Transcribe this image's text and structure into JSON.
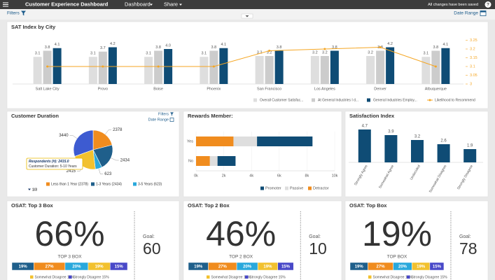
{
  "header": {
    "title": "Customer Experience Dashboard",
    "menus": [
      "Dashboard",
      "Share"
    ],
    "status": "All changes have been saved",
    "help": "?"
  },
  "toolbar": {
    "filters": "Filters",
    "date_range": "Date Range"
  },
  "chart_data": [
    {
      "type": "bar",
      "title": "SAT Index by City",
      "categories": [
        "Salt Lake City",
        "Provo",
        "Boise",
        "Phoenix",
        "San Francisco",
        "Los Angeles",
        "Denver",
        "Albuquerque"
      ],
      "series": [
        {
          "name": "Overall Customer Satisfac...",
          "color": "#dedede",
          "values": [
            3.1,
            3.1,
            3.1,
            3.1,
            3.2,
            3.2,
            3.2,
            3.1
          ]
        },
        {
          "name": "At General Industries I d...",
          "color": "#cccccc",
          "values": [
            3.8,
            3.7,
            3.8,
            3.8,
            3.2,
            3.2,
            3.8,
            3.8
          ]
        },
        {
          "name": "General Industries Employ...",
          "color": "#0f4c75",
          "values": [
            4.1,
            4.2,
            4,
            4.1,
            3.8,
            3.8,
            4.2,
            4.1
          ],
          "value_labels": [
            "4.1",
            "4.2",
            "4.0",
            "4.1",
            "3.8",
            "3.8",
            "4.2",
            "4.1"
          ]
        },
        {
          "name": "Likelihood to Recommend",
          "color": "#f5a623",
          "type": "line",
          "axis": "y2",
          "values": [
            3.1,
            3.1,
            3.1,
            3.1,
            3.19,
            3.2,
            3.21,
            3.1
          ]
        }
      ],
      "ylim": [
        0,
        6
      ],
      "y2lim": [
        3,
        3.3
      ],
      "y2ticks": [
        3,
        3.05,
        3.1,
        3.15,
        3.2,
        3.25
      ]
    },
    {
      "type": "pie",
      "title": "Customer Duration",
      "categories": [
        "Less than 1 Year (2378)",
        "1-3 Years (2434)",
        "3-5 Years (623)",
        null,
        null
      ],
      "values": [
        2378,
        2434,
        623,
        2415,
        3440
      ],
      "colors": [
        "#f08c1e",
        "#1f5f8b",
        "#29a8dc",
        "#f2c12e",
        "#3d5bd1"
      ],
      "links": {
        "filters": "Filters",
        "date_range": "Date Range"
      },
      "tooltip": [
        "Respondents (#): 2415.0",
        "Customer Duration: 5-10 Years"
      ],
      "pager": "1/3"
    },
    {
      "type": "bar",
      "orientation": "horizontal",
      "stacked": true,
      "title": "Rewards Member:",
      "categories": [
        "Yes",
        "No"
      ],
      "series": [
        {
          "name": "Promoter",
          "color": "#0f4c75",
          "values": [
            4000,
            1300
          ]
        },
        {
          "name": "Passive",
          "color": "#dedede",
          "values": [
            1700,
            550
          ]
        },
        {
          "name": "Detractor",
          "color": "#f08c1e",
          "values": [
            2700,
            1000
          ]
        }
      ],
      "xlim": [
        0,
        10000
      ],
      "xticks": [
        {
          "value": 0,
          "label": "0k"
        },
        {
          "value": 2000,
          "label": "2k"
        },
        {
          "value": 4000,
          "label": "4k"
        },
        {
          "value": 6000,
          "label": "6k"
        },
        {
          "value": 8000,
          "label": "8k"
        },
        {
          "value": 10000,
          "label": "10k"
        }
      ]
    },
    {
      "type": "bar",
      "title": "Satisfaction Index",
      "categories": [
        "Strongly Agree",
        "Somewhat Agree",
        "Undecided",
        "Somewhat Disagree",
        "Strongly Disagree"
      ],
      "values": [
        4.7,
        3.9,
        3.2,
        2.6,
        1.9
      ],
      "color": "#0f4c75",
      "ylim": [
        0,
        5
      ]
    }
  ],
  "kpis": [
    {
      "title": "OSAT: Top 3 Box",
      "value": "66%",
      "subtitle": "TOP 3 BOX",
      "goal_label": "Goal:",
      "goal": "60",
      "segments": {
        "values": [
          19,
          27,
          20,
          19,
          15
        ],
        "value_labels": [
          "19%",
          "27%",
          "20%",
          "19%",
          "15%"
        ],
        "colors": [
          "#1f5f8b",
          "#f08c1e",
          "#29a8dc",
          "#f2c12e",
          "#4848c8"
        ]
      },
      "legend": [
        {
          "text": "Somewhat Disagree 19%",
          "color": "#f2c12e"
        },
        {
          "text": "Strongly Disagree 15%",
          "color": "#4848c8"
        }
      ]
    },
    {
      "title": "OSAT: Top 2 Box",
      "value": "46%",
      "subtitle": "TOP 2 BOX",
      "goal_label": "Goal:",
      "goal": "10",
      "segments": {
        "values": [
          19,
          27,
          20,
          19,
          15
        ],
        "value_labels": [
          "19%",
          "27%",
          "20%",
          "19%",
          "15%"
        ],
        "colors": [
          "#1f5f8b",
          "#f08c1e",
          "#29a8dc",
          "#f2c12e",
          "#4848c8"
        ]
      },
      "legend": [
        {
          "text": "Somewhat Disagree 19%",
          "color": "#f2c12e"
        },
        {
          "text": "Strongly Disagree 15%",
          "color": "#4848c8"
        }
      ]
    },
    {
      "title": "OSAT: Top Box",
      "value": "19%",
      "subtitle": "TOP BOX",
      "goal_label": "Goal:",
      "goal": "78",
      "segments": {
        "values": [
          19,
          27,
          20,
          19,
          15
        ],
        "value_labels": [
          "19%",
          "27%",
          "20%",
          "19%",
          "15%"
        ],
        "colors": [
          "#1f5f8b",
          "#f08c1e",
          "#29a8dc",
          "#f2c12e",
          "#4848c8"
        ]
      },
      "legend": [
        {
          "text": "Somewhat Disagree 19%",
          "color": "#f2c12e"
        },
        {
          "text": "Strongly Disagree 15%",
          "color": "#4848c8"
        }
      ]
    }
  ]
}
